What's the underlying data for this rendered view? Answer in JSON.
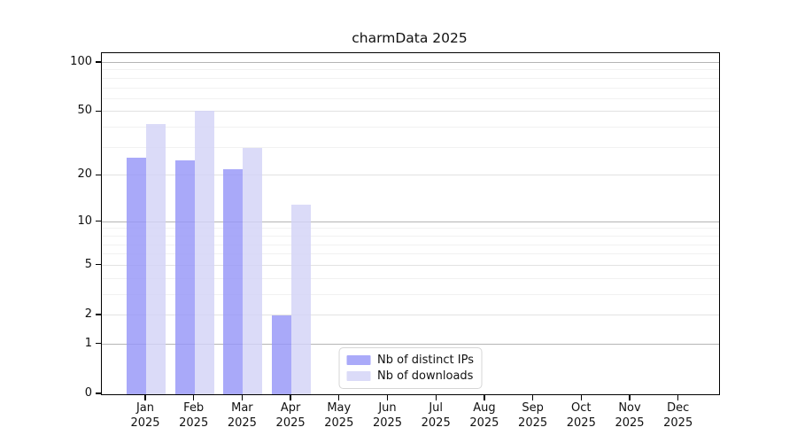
{
  "title": "charmData 2025",
  "legend": {
    "items": [
      {
        "label": "Nb of distinct IPs",
        "color": "#aaaaf9"
      },
      {
        "label": "Nb of downloads",
        "color": "#dbdbf8"
      }
    ]
  },
  "chart_data": {
    "type": "bar",
    "title": "charmData 2025",
    "categories": [
      "Jan",
      "Feb",
      "Mar",
      "Apr",
      "May",
      "Jun",
      "Jul",
      "Aug",
      "Sep",
      "Oct",
      "Nov",
      "Dec"
    ],
    "year_label": "2025",
    "series": [
      {
        "name": "Nb of distinct IPs",
        "color": "rgba(150,150,248,0.82)",
        "solid_color": "#aaaaf9",
        "values": [
          26,
          25,
          22,
          2,
          0,
          0,
          0,
          0,
          0,
          0,
          0,
          0
        ]
      },
      {
        "name": "Nb of downloads",
        "color": "rgba(211,211,247,0.82)",
        "solid_color": "#dbdbf8",
        "values": [
          42,
          51,
          30,
          13,
          0,
          0,
          0,
          0,
          0,
          0,
          0,
          0
        ]
      }
    ],
    "yscale": "symlog-log1p",
    "yticks": [
      0,
      1,
      2,
      5,
      10,
      20,
      50,
      100
    ],
    "ylim": [
      0,
      115
    ],
    "grid": "horizontal",
    "gridline_values": {
      "major": [
        1,
        10,
        100
      ],
      "mid": [
        2,
        5,
        20,
        50
      ],
      "minor": [
        3,
        4,
        6,
        7,
        8,
        9,
        30,
        40,
        60,
        70,
        80,
        90
      ]
    },
    "legend_position": "lower center",
    "colors": {
      "axis": "#000000",
      "grid_major": "#b5b5b5",
      "grid_mid": "#e2e2e2",
      "grid_minor": "#f1f1f1",
      "title_text": "#111111",
      "tick_text": "#111111"
    }
  }
}
